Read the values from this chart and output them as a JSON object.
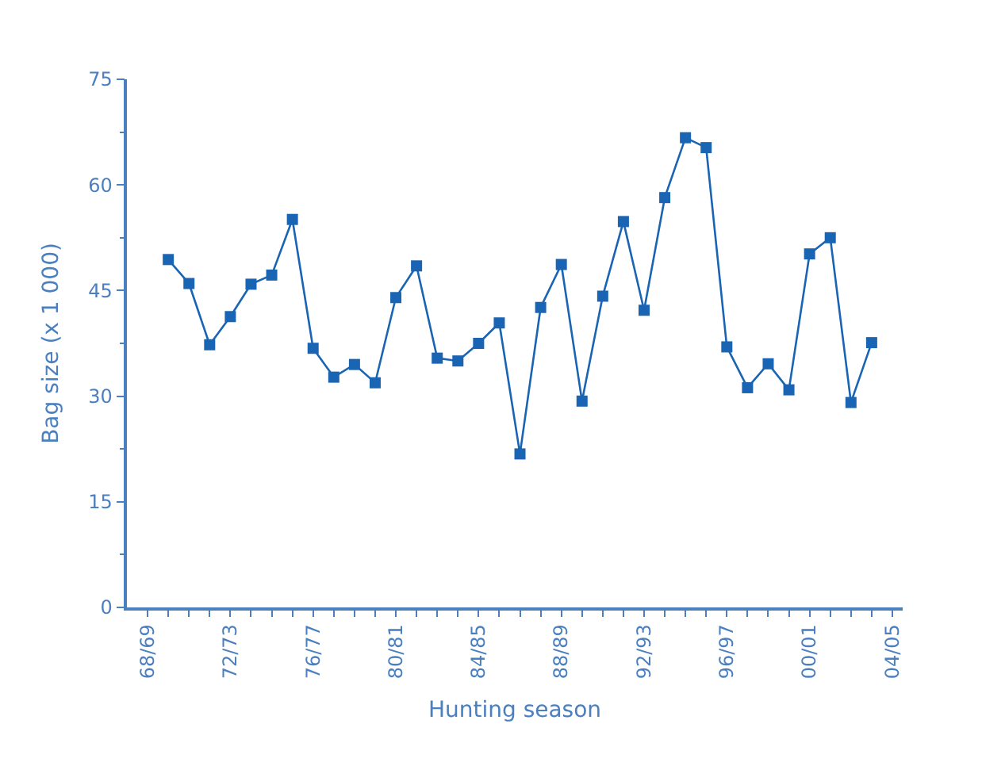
{
  "chart_data": {
    "type": "line",
    "xlabel": "Hunting season",
    "ylabel": "Bag size (x 1 000)",
    "categories": [
      "68/69",
      null,
      null,
      null,
      "72/73",
      null,
      null,
      null,
      "76/77",
      null,
      null,
      null,
      "80/81",
      null,
      null,
      null,
      "84/85",
      null,
      null,
      null,
      "88/89",
      null,
      null,
      null,
      "92/93",
      null,
      null,
      null,
      "96/97",
      null,
      null,
      null,
      "00/01",
      null,
      null,
      null,
      "04/05"
    ],
    "series": [
      {
        "color": "#1a64b4",
        "values": [
          null,
          49.4,
          46.0,
          37.3,
          41.3,
          45.9,
          47.2,
          55.1,
          36.8,
          32.7,
          34.5,
          31.9,
          44.0,
          48.5,
          35.4,
          35.0,
          37.5,
          40.4,
          21.8,
          42.6,
          48.7,
          29.3,
          44.2,
          54.8,
          42.2,
          58.2,
          66.7,
          65.3,
          37.0,
          31.2,
          34.6,
          30.9,
          50.2,
          52.5,
          29.1,
          37.6,
          null
        ]
      }
    ],
    "ylim": [
      0,
      75
    ],
    "yticks": [
      0,
      15,
      30,
      45,
      60,
      75
    ],
    "marker": "square",
    "line_style": "solid"
  }
}
